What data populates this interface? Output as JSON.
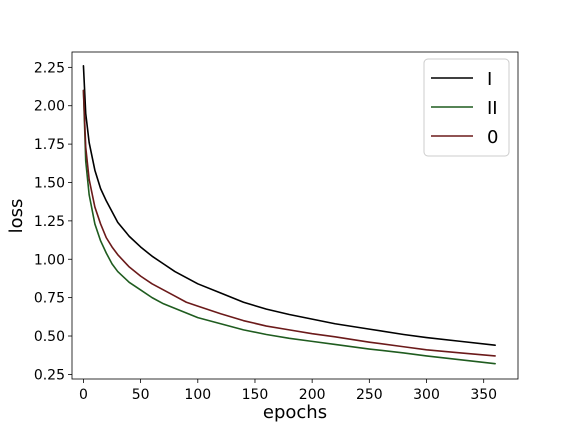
{
  "chart_data": {
    "type": "line",
    "xlabel": "epochs",
    "ylabel": "loss",
    "xlim": [
      -10,
      380
    ],
    "ylim": [
      0.22,
      2.35
    ],
    "x_ticks": [
      "0",
      "50",
      "100",
      "150",
      "200",
      "250",
      "300",
      "350"
    ],
    "x_tick_values": [
      0,
      50,
      100,
      150,
      200,
      250,
      300,
      350
    ],
    "y_ticks": [
      "0.25",
      "0.50",
      "0.75",
      "1.00",
      "1.25",
      "1.50",
      "1.75",
      "2.00",
      "2.25"
    ],
    "y_tick_values": [
      0.25,
      0.5,
      0.75,
      1.0,
      1.25,
      1.5,
      1.75,
      2.0,
      2.25
    ],
    "grid": false,
    "legend_position": "top-right",
    "series": [
      {
        "name": "I",
        "color": "#000000",
        "x": [
          0,
          2,
          5,
          10,
          15,
          20,
          25,
          30,
          40,
          50,
          60,
          70,
          80,
          90,
          100,
          120,
          140,
          160,
          180,
          200,
          220,
          250,
          280,
          300,
          330,
          360
        ],
        "y": [
          2.26,
          1.95,
          1.76,
          1.58,
          1.46,
          1.38,
          1.31,
          1.24,
          1.15,
          1.08,
          1.02,
          0.97,
          0.92,
          0.88,
          0.84,
          0.78,
          0.72,
          0.675,
          0.64,
          0.61,
          0.58,
          0.545,
          0.51,
          0.49,
          0.465,
          0.44
        ]
      },
      {
        "name": "II",
        "color": "#1f5c1f",
        "x": [
          0,
          2,
          5,
          10,
          15,
          20,
          25,
          30,
          40,
          50,
          60,
          70,
          80,
          90,
          100,
          120,
          140,
          160,
          180,
          200,
          220,
          250,
          280,
          300,
          330,
          360
        ],
        "y": [
          2.1,
          1.64,
          1.42,
          1.23,
          1.12,
          1.04,
          0.97,
          0.92,
          0.85,
          0.8,
          0.75,
          0.71,
          0.68,
          0.65,
          0.62,
          0.58,
          0.54,
          0.51,
          0.485,
          0.465,
          0.445,
          0.415,
          0.39,
          0.37,
          0.345,
          0.32
        ]
      },
      {
        "name": "0",
        "color": "#6b1a1a",
        "x": [
          0,
          2,
          5,
          10,
          15,
          20,
          25,
          30,
          40,
          50,
          60,
          70,
          80,
          90,
          100,
          120,
          140,
          160,
          180,
          200,
          220,
          250,
          280,
          300,
          330,
          360
        ],
        "y": [
          2.1,
          1.73,
          1.52,
          1.34,
          1.23,
          1.14,
          1.08,
          1.03,
          0.95,
          0.89,
          0.84,
          0.8,
          0.76,
          0.72,
          0.695,
          0.645,
          0.6,
          0.565,
          0.54,
          0.515,
          0.495,
          0.46,
          0.43,
          0.41,
          0.39,
          0.37
        ]
      }
    ]
  }
}
